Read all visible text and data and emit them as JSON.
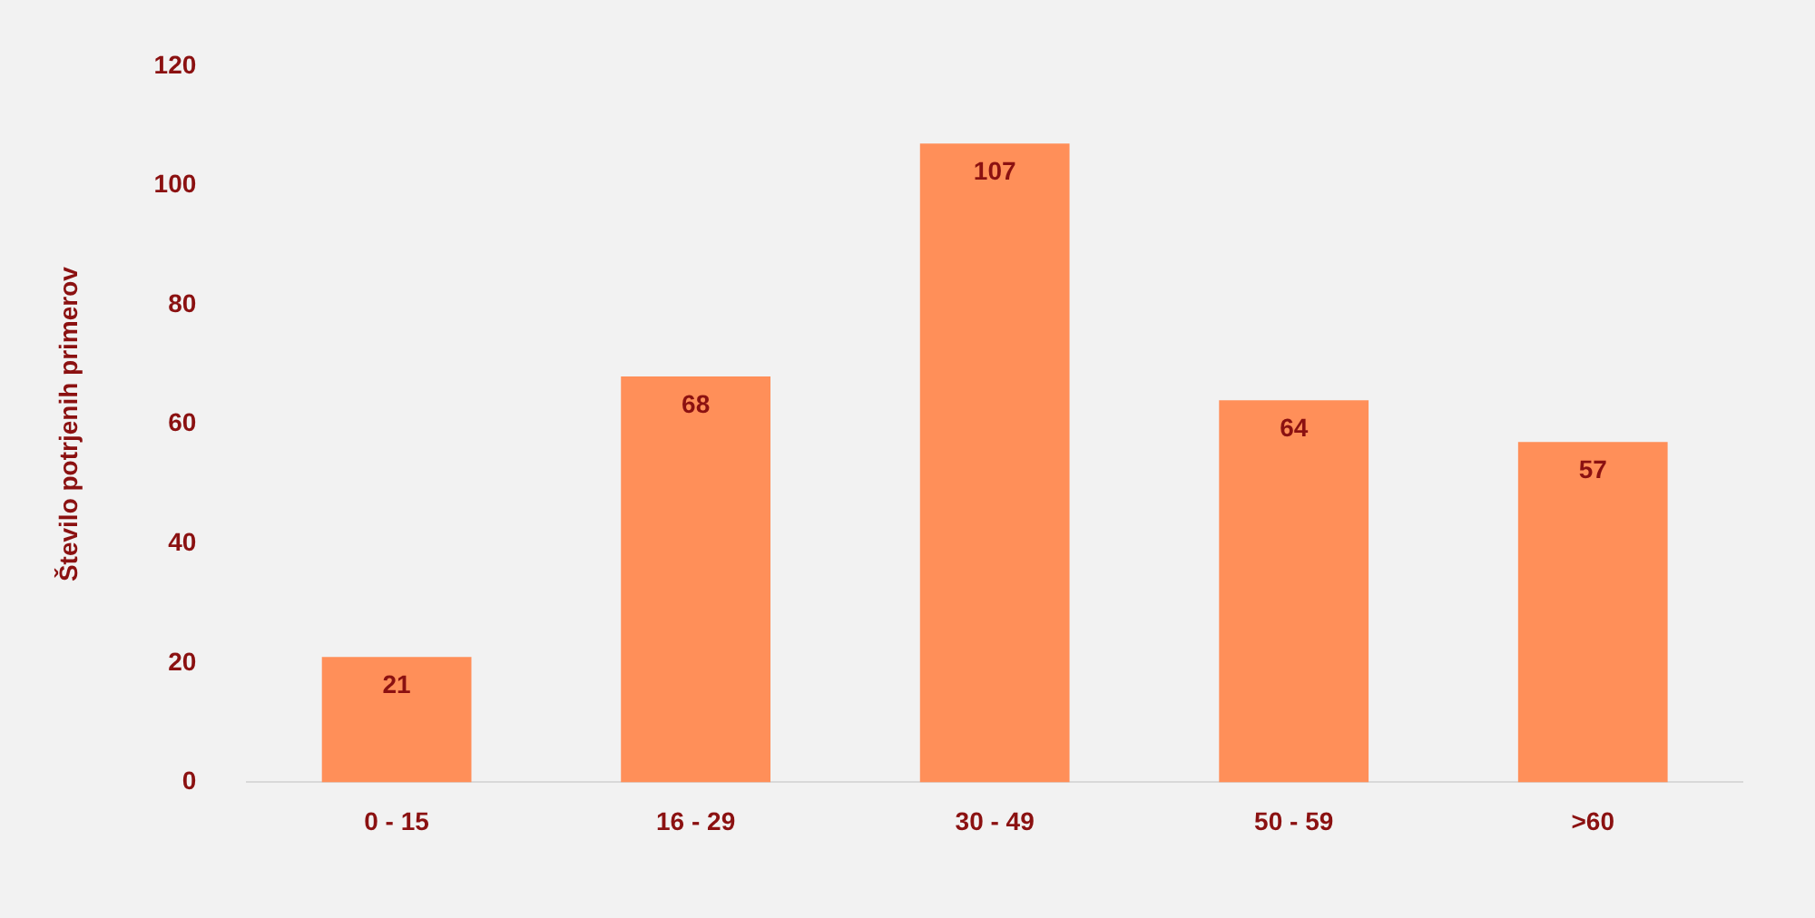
{
  "chart_data": {
    "type": "bar",
    "ylabel": "Število potrjenih primerov",
    "categories": [
      "0 - 15",
      "16 - 29",
      "30 - 49",
      "50 - 59",
      ">60"
    ],
    "values": [
      21,
      68,
      107,
      64,
      57
    ],
    "color": "#ff8f59",
    "ylim": [
      0,
      120
    ],
    "yticks": [
      0,
      20,
      40,
      60,
      80,
      100,
      120
    ],
    "grid": false,
    "legend": false,
    "data_labels": true
  }
}
